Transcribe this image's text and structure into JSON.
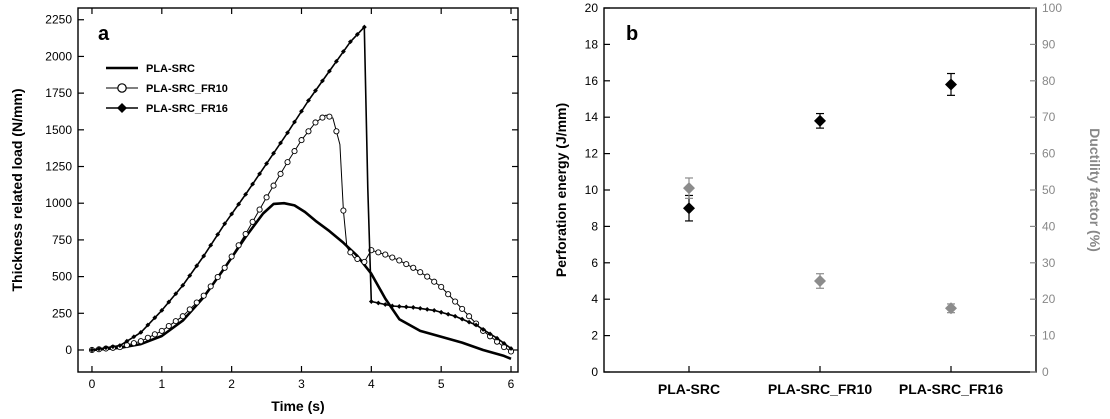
{
  "chart_data": [
    {
      "type": "line",
      "panel_label": "a",
      "xlabel": "Time (s)",
      "ylabel": "Thickness related load (N/mm)",
      "xlim": [
        -0.2,
        6.1
      ],
      "ylim": [
        -150,
        2330
      ],
      "x_ticks": [
        "0",
        "1",
        "2",
        "3",
        "4",
        "5",
        "6"
      ],
      "y_ticks": [
        "0",
        "250",
        "500",
        "750",
        "1000",
        "1250",
        "1500",
        "1750",
        "2000",
        "2250"
      ],
      "legend_placement": "upper-left",
      "series": [
        {
          "name": "PLA-SRC",
          "marker": "none",
          "x": [
            0,
            0.4,
            0.7,
            1.0,
            1.3,
            1.6,
            1.9,
            2.2,
            2.45,
            2.6,
            2.75,
            2.9,
            3.05,
            3.2,
            3.4,
            3.6,
            3.8,
            4.0,
            4.2,
            4.4,
            4.7,
            5.0,
            5.3,
            5.6,
            5.9,
            6.0
          ],
          "y": [
            0,
            15,
            40,
            95,
            200,
            360,
            560,
            770,
            930,
            995,
            1000,
            985,
            940,
            880,
            810,
            730,
            640,
            520,
            350,
            210,
            130,
            90,
            50,
            0,
            -40,
            -60
          ]
        },
        {
          "name": "PLA-SRC_FR10",
          "marker": "open-circle",
          "x": [
            0,
            0.4,
            0.7,
            1.0,
            1.3,
            1.6,
            1.9,
            2.2,
            2.5,
            2.8,
            3.0,
            3.2,
            3.35,
            3.45,
            3.55,
            3.6,
            3.65,
            3.75,
            3.9,
            4.0,
            4.2,
            4.4,
            4.6,
            4.8,
            5.0,
            5.3,
            5.6,
            5.9,
            6.0
          ],
          "y": [
            0,
            20,
            60,
            130,
            230,
            370,
            560,
            790,
            1040,
            1280,
            1430,
            1550,
            1600,
            1580,
            1400,
            950,
            700,
            630,
            600,
            680,
            650,
            610,
            560,
            500,
            430,
            280,
            130,
            20,
            -10
          ]
        },
        {
          "name": "PLA-SRC_FR16",
          "marker": "filled-diamond",
          "x": [
            0,
            0.4,
            0.7,
            1.0,
            1.3,
            1.6,
            1.9,
            2.2,
            2.5,
            2.8,
            3.1,
            3.4,
            3.7,
            3.9,
            3.95,
            4.0,
            4.3,
            4.6,
            4.9,
            5.2,
            5.5,
            5.8,
            6.0
          ],
          "y": [
            0,
            30,
            120,
            270,
            440,
            640,
            860,
            1060,
            1270,
            1480,
            1700,
            1900,
            2100,
            2200,
            1100,
            330,
            300,
            290,
            270,
            230,
            170,
            80,
            10
          ]
        }
      ]
    },
    {
      "type": "scatter",
      "panel_label": "b",
      "categories": [
        "PLA-SRC",
        "PLA-SRC_FR10",
        "PLA-SRC_FR16"
      ],
      "ylabel": "Perforation energy (J/mm)",
      "ylim": [
        0,
        20
      ],
      "y_ticks": [
        "0",
        "2",
        "4",
        "6",
        "8",
        "10",
        "12",
        "14",
        "16",
        "18",
        "20"
      ],
      "y2label": "Ductility factor (%)",
      "y2lim": [
        0,
        100
      ],
      "y2_ticks": [
        "0",
        "10",
        "20",
        "30",
        "40",
        "50",
        "60",
        "70",
        "80",
        "90",
        "100"
      ],
      "series": [
        {
          "axis": "left",
          "marker": "filled-diamond",
          "color": "#000000",
          "values": [
            9.0,
            13.8,
            15.8
          ],
          "errors": [
            0.7,
            0.4,
            0.6
          ]
        },
        {
          "axis": "right",
          "marker": "filled-diamond",
          "color": "#8c8c8c",
          "values": [
            50.5,
            25.0,
            17.5
          ],
          "errors": [
            2.8,
            2.0,
            1.2
          ]
        }
      ]
    }
  ]
}
